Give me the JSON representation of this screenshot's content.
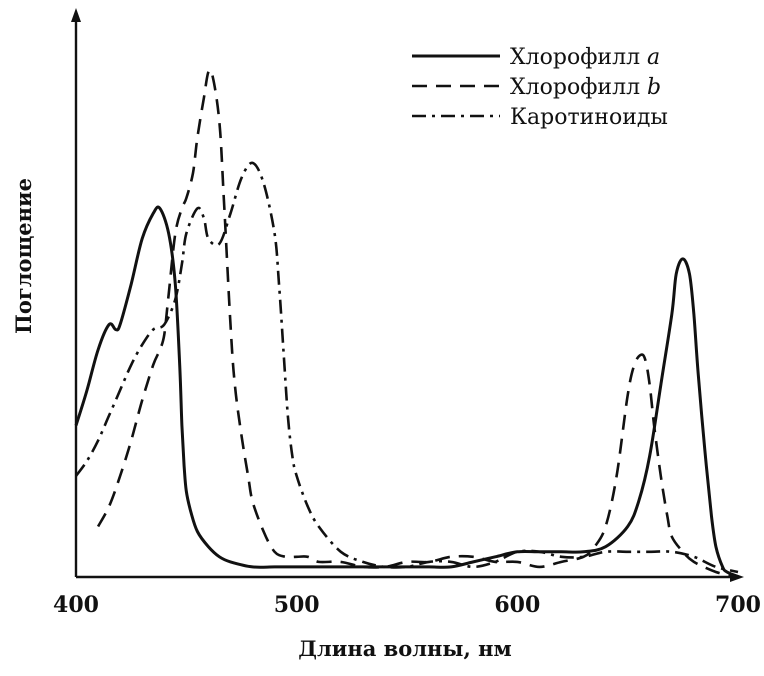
{
  "chart_data": {
    "type": "line",
    "xlabel": "Длина волны, нм",
    "ylabel": "Поглощение",
    "xlim": [
      400,
      700
    ],
    "ylim": [
      0,
      1
    ],
    "xticks": [
      "400",
      "500",
      "600",
      "700"
    ],
    "xtick_values": [
      400,
      500,
      600,
      700
    ],
    "grid": false,
    "legend_position": "top-right",
    "series": [
      {
        "name": "Хлорофилл a",
        "name_main": "Хлорофилл",
        "name_suffix": "a",
        "style": "solid",
        "x": [
          400,
          405,
          410,
          415,
          418,
          420,
          425,
          430,
          435,
          438,
          442,
          445,
          447,
          448,
          449,
          450,
          452,
          455,
          460,
          465,
          470,
          480,
          490,
          500,
          510,
          520,
          530,
          540,
          550,
          560,
          570,
          580,
          590,
          600,
          610,
          620,
          630,
          640,
          650,
          655,
          660,
          665,
          670,
          672,
          675,
          678,
          680,
          682,
          685,
          688,
          690,
          693,
          695,
          700
        ],
        "y": [
          0.3,
          0.37,
          0.45,
          0.5,
          0.49,
          0.5,
          0.58,
          0.67,
          0.72,
          0.73,
          0.68,
          0.58,
          0.42,
          0.3,
          0.22,
          0.17,
          0.13,
          0.09,
          0.06,
          0.04,
          0.03,
          0.02,
          0.02,
          0.02,
          0.02,
          0.02,
          0.02,
          0.02,
          0.02,
          0.02,
          0.02,
          0.03,
          0.04,
          0.05,
          0.05,
          0.05,
          0.05,
          0.06,
          0.1,
          0.15,
          0.24,
          0.38,
          0.52,
          0.6,
          0.63,
          0.6,
          0.52,
          0.4,
          0.25,
          0.12,
          0.06,
          0.02,
          0.01,
          0
        ]
      },
      {
        "name": "Хлорофилл b",
        "name_main": "Хлорофилл",
        "name_suffix": "b",
        "style": "dashed",
        "x": [
          410,
          415,
          420,
          425,
          430,
          435,
          438,
          440,
          442,
          445,
          448,
          450,
          453,
          455,
          458,
          460,
          462,
          465,
          467,
          470,
          472,
          475,
          478,
          480,
          485,
          490,
          495,
          500,
          505,
          510,
          520,
          530,
          540,
          550,
          560,
          570,
          580,
          590,
          600,
          610,
          620,
          630,
          635,
          640,
          645,
          650,
          653,
          656,
          658,
          660,
          662,
          665,
          668,
          670,
          675,
          680,
          690,
          700
        ],
        "y": [
          0.1,
          0.14,
          0.2,
          0.27,
          0.35,
          0.42,
          0.45,
          0.48,
          0.56,
          0.68,
          0.73,
          0.75,
          0.8,
          0.87,
          0.95,
          1.0,
          0.99,
          0.9,
          0.75,
          0.5,
          0.38,
          0.28,
          0.2,
          0.15,
          0.09,
          0.05,
          0.04,
          0.04,
          0.04,
          0.03,
          0.03,
          0.02,
          0.02,
          0.03,
          0.03,
          0.04,
          0.04,
          0.03,
          0.03,
          0.02,
          0.03,
          0.04,
          0.06,
          0.1,
          0.2,
          0.36,
          0.42,
          0.44,
          0.43,
          0.38,
          0.3,
          0.2,
          0.12,
          0.08,
          0.05,
          0.03,
          0.01,
          0
        ]
      },
      {
        "name": "Каротиноиды",
        "name_main": "Каротиноиды",
        "name_suffix": "",
        "style": "dashdot",
        "x": [
          400,
          405,
          410,
          415,
          420,
          425,
          430,
          435,
          440,
          445,
          448,
          450,
          455,
          458,
          460,
          465,
          470,
          475,
          480,
          485,
          490,
          492,
          494,
          496,
          498,
          500,
          505,
          510,
          520,
          530,
          540,
          550,
          560,
          570,
          580,
          590,
          600,
          610,
          620,
          630,
          640,
          650,
          660,
          670,
          680,
          690,
          700
        ],
        "y": [
          0.2,
          0.23,
          0.27,
          0.32,
          0.37,
          0.42,
          0.46,
          0.49,
          0.5,
          0.55,
          0.62,
          0.68,
          0.73,
          0.71,
          0.67,
          0.66,
          0.72,
          0.79,
          0.82,
          0.78,
          0.68,
          0.58,
          0.45,
          0.32,
          0.24,
          0.2,
          0.14,
          0.1,
          0.05,
          0.03,
          0.02,
          0.02,
          0.03,
          0.03,
          0.02,
          0.03,
          0.05,
          0.05,
          0.04,
          0.04,
          0.05,
          0.05,
          0.05,
          0.05,
          0.04,
          0.02,
          0.01
        ]
      }
    ]
  }
}
